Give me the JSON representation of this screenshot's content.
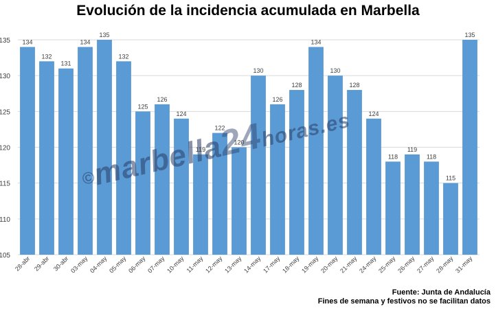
{
  "chart_data": {
    "type": "bar",
    "title": "Evolución de la incidencia acumulada en Marbella",
    "xlabel": "",
    "ylabel": "",
    "ylim": [
      105,
      135
    ],
    "yticks": [
      105,
      110,
      115,
      120,
      125,
      130,
      135
    ],
    "grid": true,
    "bar_color": "#5b9bd5",
    "categories": [
      "28-abr",
      "29-abr",
      "30-abr",
      "03-may",
      "04-may",
      "05-may",
      "06-may",
      "07-may",
      "10-may",
      "11-may",
      "12-may",
      "13-may",
      "14-may",
      "17-may",
      "18-may",
      "19-may",
      "20-may",
      "21-may",
      "24-may",
      "25-may",
      "26-may",
      "27-may",
      "28-may",
      "31-may"
    ],
    "values": [
      134,
      132,
      131,
      134,
      135,
      132,
      125,
      126,
      124,
      119,
      122,
      120,
      130,
      126,
      128,
      134,
      130,
      128,
      124,
      118,
      119,
      118,
      115,
      135
    ]
  },
  "watermark": {
    "symbol": "©",
    "text1": "marbella",
    "text2": "24",
    "text3": "horas",
    "text4": ".es"
  },
  "source": {
    "line1": "Fuente: Junta de Andalucía",
    "line2": "Fines de semana y festivos no se facilitan datos"
  }
}
